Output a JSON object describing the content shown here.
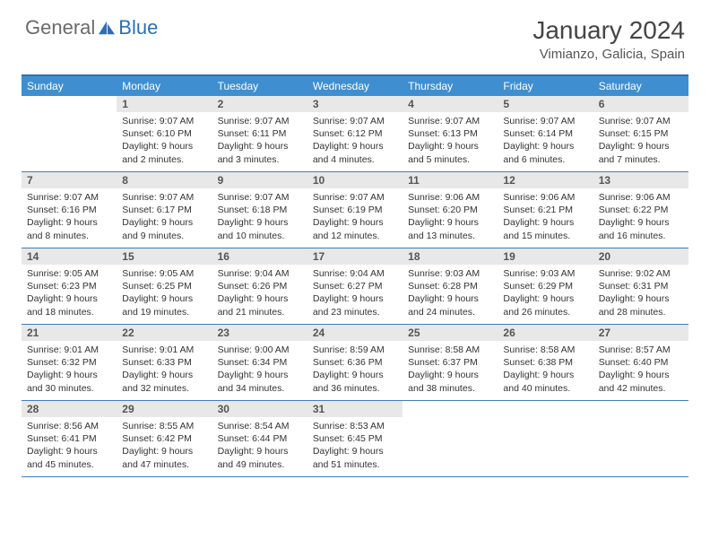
{
  "logo": {
    "part1": "General",
    "part2": "Blue"
  },
  "title": {
    "month": "January 2024",
    "location": "Vimianzo, Galicia, Spain"
  },
  "colors": {
    "header_bg": "#3f8fd0",
    "header_text": "#ffffff",
    "border": "#3f7fb8",
    "daynum_bg": "#e8e8e8",
    "logo_gray": "#6a6a6a",
    "logo_blue": "#2f6fb0"
  },
  "day_names": [
    "Sunday",
    "Monday",
    "Tuesday",
    "Wednesday",
    "Thursday",
    "Friday",
    "Saturday"
  ],
  "start_offset": 1,
  "days": [
    {
      "n": 1,
      "sr": "9:07 AM",
      "ss": "6:10 PM",
      "dl": "9 hours and 2 minutes."
    },
    {
      "n": 2,
      "sr": "9:07 AM",
      "ss": "6:11 PM",
      "dl": "9 hours and 3 minutes."
    },
    {
      "n": 3,
      "sr": "9:07 AM",
      "ss": "6:12 PM",
      "dl": "9 hours and 4 minutes."
    },
    {
      "n": 4,
      "sr": "9:07 AM",
      "ss": "6:13 PM",
      "dl": "9 hours and 5 minutes."
    },
    {
      "n": 5,
      "sr": "9:07 AM",
      "ss": "6:14 PM",
      "dl": "9 hours and 6 minutes."
    },
    {
      "n": 6,
      "sr": "9:07 AM",
      "ss": "6:15 PM",
      "dl": "9 hours and 7 minutes."
    },
    {
      "n": 7,
      "sr": "9:07 AM",
      "ss": "6:16 PM",
      "dl": "9 hours and 8 minutes."
    },
    {
      "n": 8,
      "sr": "9:07 AM",
      "ss": "6:17 PM",
      "dl": "9 hours and 9 minutes."
    },
    {
      "n": 9,
      "sr": "9:07 AM",
      "ss": "6:18 PM",
      "dl": "9 hours and 10 minutes."
    },
    {
      "n": 10,
      "sr": "9:07 AM",
      "ss": "6:19 PM",
      "dl": "9 hours and 12 minutes."
    },
    {
      "n": 11,
      "sr": "9:06 AM",
      "ss": "6:20 PM",
      "dl": "9 hours and 13 minutes."
    },
    {
      "n": 12,
      "sr": "9:06 AM",
      "ss": "6:21 PM",
      "dl": "9 hours and 15 minutes."
    },
    {
      "n": 13,
      "sr": "9:06 AM",
      "ss": "6:22 PM",
      "dl": "9 hours and 16 minutes."
    },
    {
      "n": 14,
      "sr": "9:05 AM",
      "ss": "6:23 PM",
      "dl": "9 hours and 18 minutes."
    },
    {
      "n": 15,
      "sr": "9:05 AM",
      "ss": "6:25 PM",
      "dl": "9 hours and 19 minutes."
    },
    {
      "n": 16,
      "sr": "9:04 AM",
      "ss": "6:26 PM",
      "dl": "9 hours and 21 minutes."
    },
    {
      "n": 17,
      "sr": "9:04 AM",
      "ss": "6:27 PM",
      "dl": "9 hours and 23 minutes."
    },
    {
      "n": 18,
      "sr": "9:03 AM",
      "ss": "6:28 PM",
      "dl": "9 hours and 24 minutes."
    },
    {
      "n": 19,
      "sr": "9:03 AM",
      "ss": "6:29 PM",
      "dl": "9 hours and 26 minutes."
    },
    {
      "n": 20,
      "sr": "9:02 AM",
      "ss": "6:31 PM",
      "dl": "9 hours and 28 minutes."
    },
    {
      "n": 21,
      "sr": "9:01 AM",
      "ss": "6:32 PM",
      "dl": "9 hours and 30 minutes."
    },
    {
      "n": 22,
      "sr": "9:01 AM",
      "ss": "6:33 PM",
      "dl": "9 hours and 32 minutes."
    },
    {
      "n": 23,
      "sr": "9:00 AM",
      "ss": "6:34 PM",
      "dl": "9 hours and 34 minutes."
    },
    {
      "n": 24,
      "sr": "8:59 AM",
      "ss": "6:36 PM",
      "dl": "9 hours and 36 minutes."
    },
    {
      "n": 25,
      "sr": "8:58 AM",
      "ss": "6:37 PM",
      "dl": "9 hours and 38 minutes."
    },
    {
      "n": 26,
      "sr": "8:58 AM",
      "ss": "6:38 PM",
      "dl": "9 hours and 40 minutes."
    },
    {
      "n": 27,
      "sr": "8:57 AM",
      "ss": "6:40 PM",
      "dl": "9 hours and 42 minutes."
    },
    {
      "n": 28,
      "sr": "8:56 AM",
      "ss": "6:41 PM",
      "dl": "9 hours and 45 minutes."
    },
    {
      "n": 29,
      "sr": "8:55 AM",
      "ss": "6:42 PM",
      "dl": "9 hours and 47 minutes."
    },
    {
      "n": 30,
      "sr": "8:54 AM",
      "ss": "6:44 PM",
      "dl": "9 hours and 49 minutes."
    },
    {
      "n": 31,
      "sr": "8:53 AM",
      "ss": "6:45 PM",
      "dl": "9 hours and 51 minutes."
    }
  ],
  "labels": {
    "sunrise": "Sunrise:",
    "sunset": "Sunset:",
    "daylight": "Daylight:"
  }
}
